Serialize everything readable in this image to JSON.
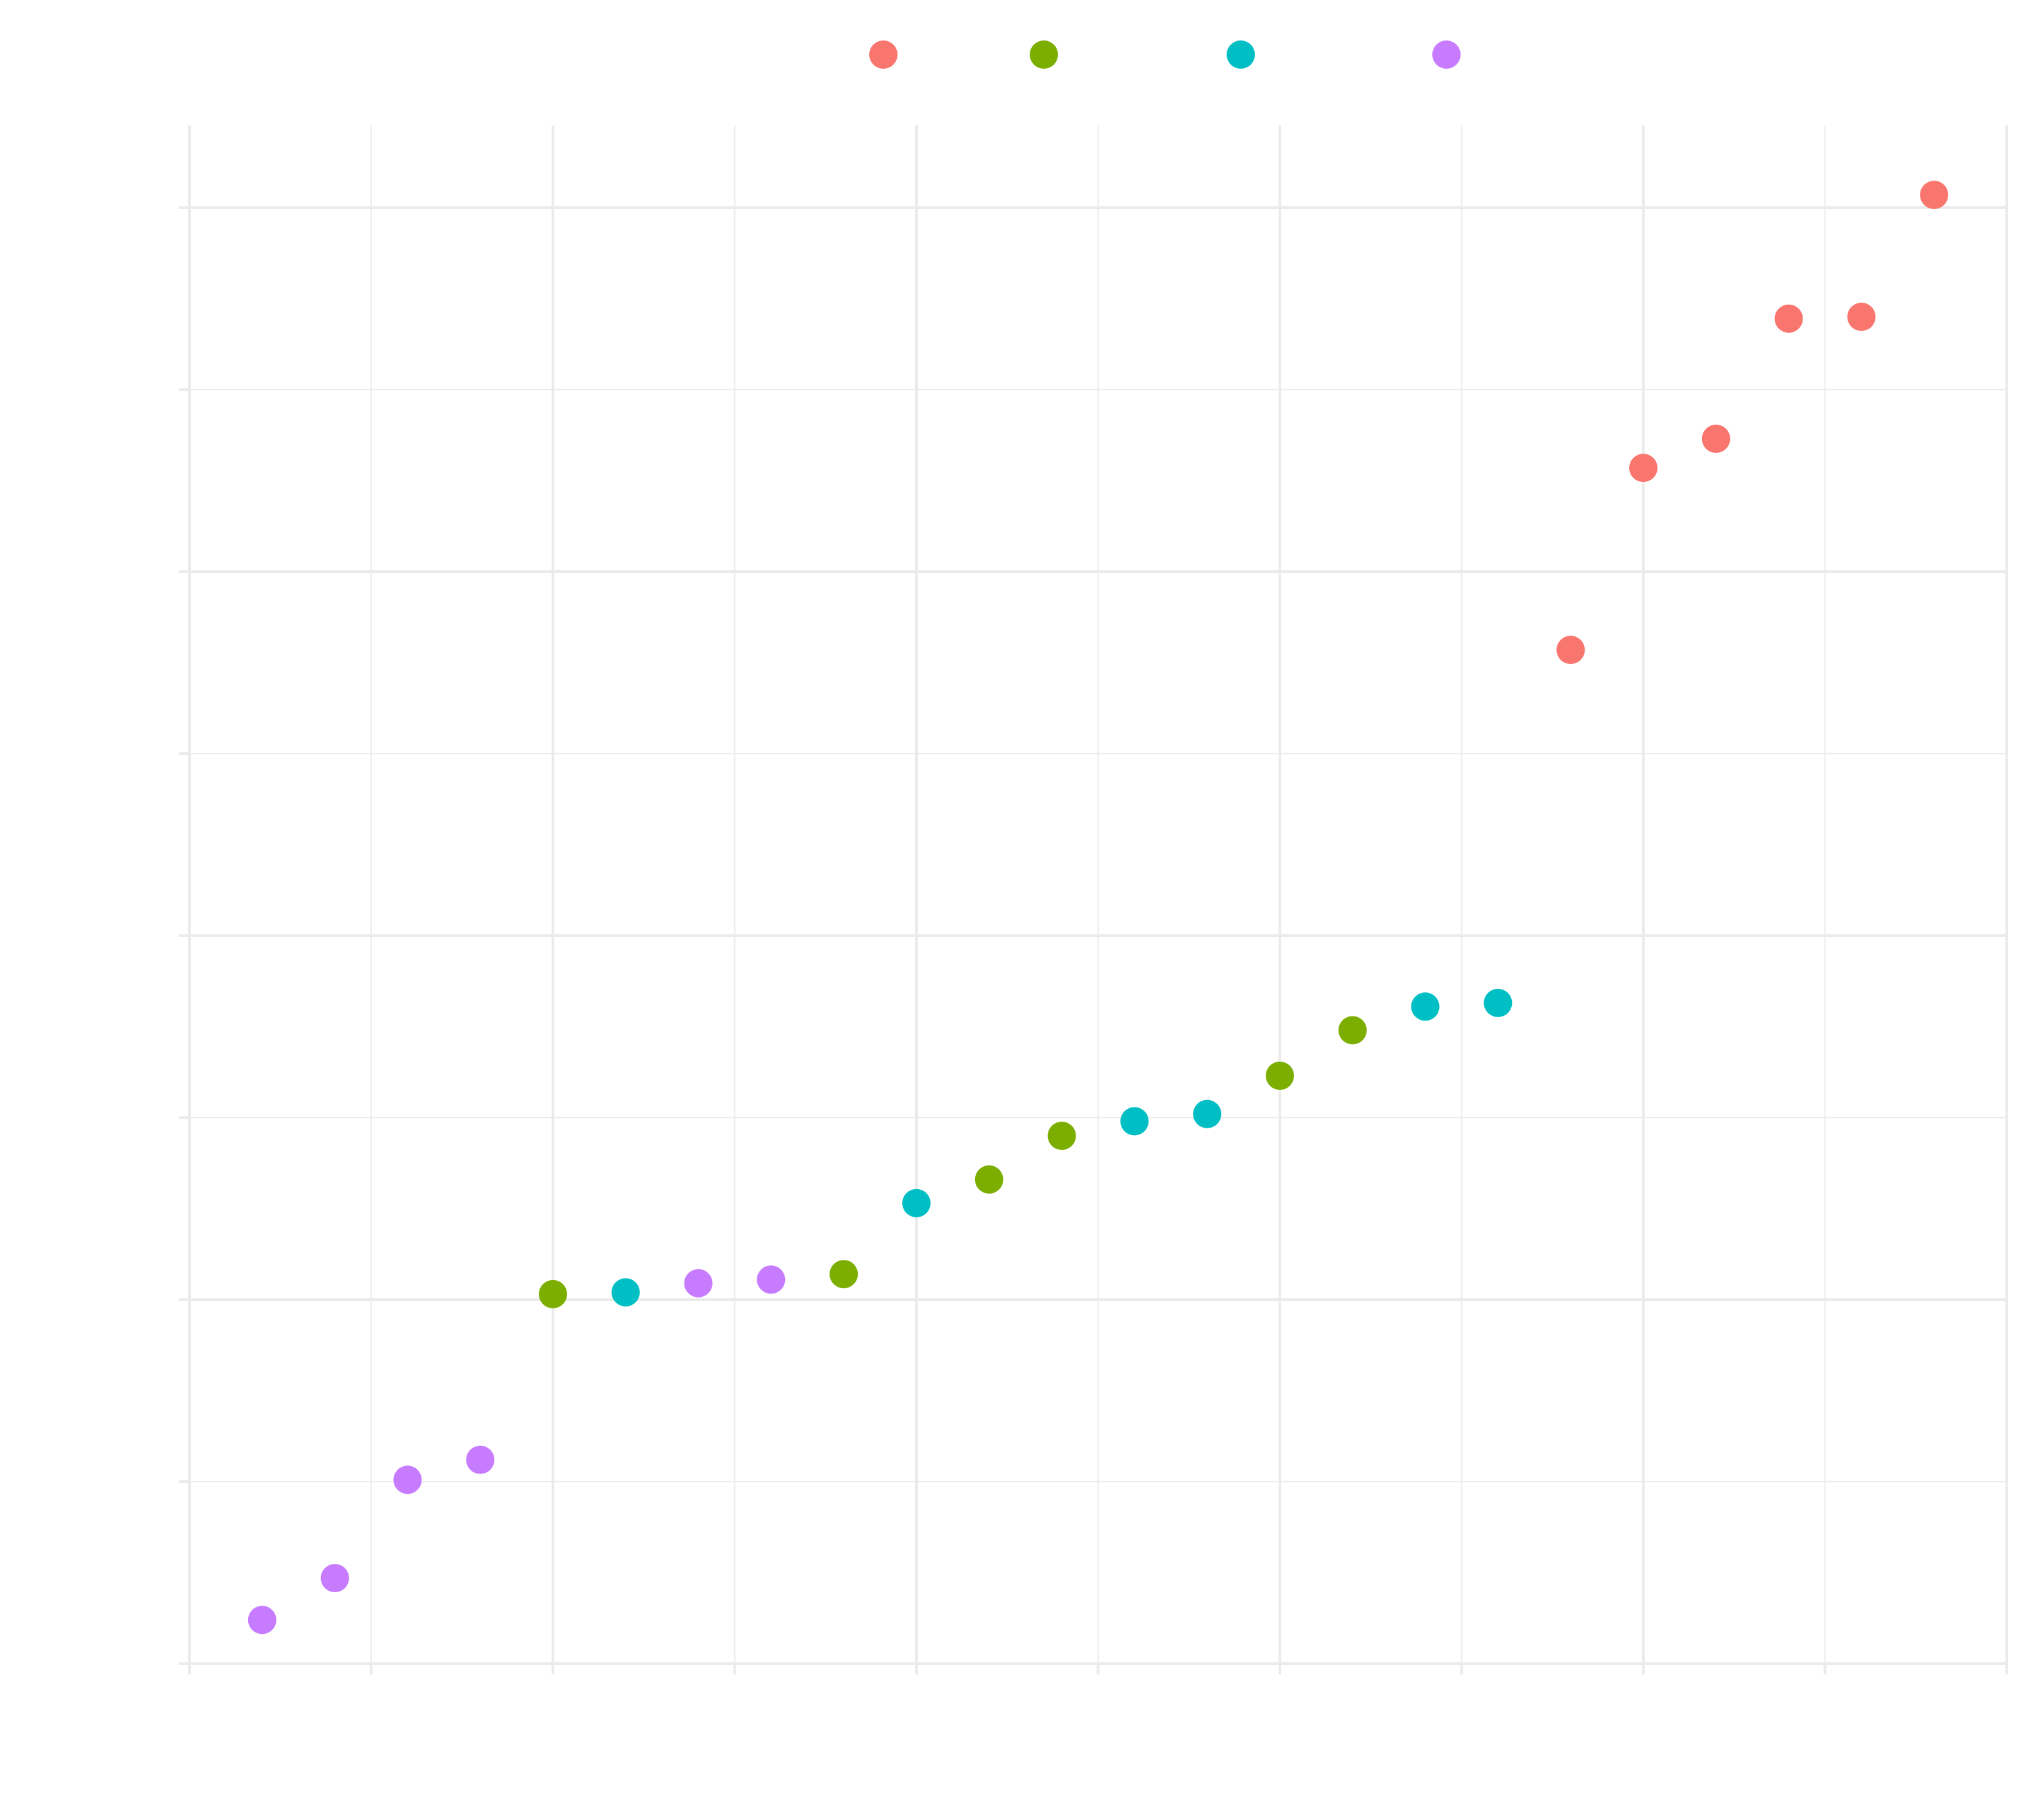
{
  "chart_data": {
    "type": "scatter",
    "title": "",
    "xlabel": "",
    "ylabel": "",
    "grid": true,
    "legend_position": "top",
    "xlim": [
      0,
      25
    ],
    "ylim": [
      0,
      8
    ],
    "x_major_ticks": [
      0,
      5,
      10,
      15,
      20,
      25
    ],
    "x_minor_ticks": [
      2.5,
      7.5,
      12.5,
      17.5,
      22.5
    ],
    "y_major_ticks": [
      0,
      2,
      4,
      6,
      8
    ],
    "y_minor_ticks": [
      1,
      3,
      5,
      7
    ],
    "series": [
      {
        "color": "#F8766D",
        "points": [
          {
            "x": 19,
            "y": 5.57
          },
          {
            "x": 20,
            "y": 6.57
          },
          {
            "x": 21,
            "y": 6.73
          },
          {
            "x": 22,
            "y": 7.39
          },
          {
            "x": 23,
            "y": 7.4
          },
          {
            "x": 24,
            "y": 8.07
          }
        ]
      },
      {
        "color": "#7CAE00",
        "points": [
          {
            "x": 5,
            "y": 2.03
          },
          {
            "x": 9,
            "y": 2.14
          },
          {
            "x": 11,
            "y": 2.66
          },
          {
            "x": 12,
            "y": 2.9
          },
          {
            "x": 15,
            "y": 3.23
          },
          {
            "x": 16,
            "y": 3.48
          }
        ]
      },
      {
        "color": "#00BFC4",
        "points": [
          {
            "x": 6,
            "y": 2.04
          },
          {
            "x": 10,
            "y": 2.53
          },
          {
            "x": 13,
            "y": 2.98
          },
          {
            "x": 14,
            "y": 3.02
          },
          {
            "x": 17,
            "y": 3.61
          },
          {
            "x": 18,
            "y": 3.63
          }
        ]
      },
      {
        "color": "#C77CFF",
        "points": [
          {
            "x": 1,
            "y": 0.24
          },
          {
            "x": 2,
            "y": 0.47
          },
          {
            "x": 3,
            "y": 1.01
          },
          {
            "x": 4,
            "y": 1.12
          },
          {
            "x": 7,
            "y": 2.09
          },
          {
            "x": 8,
            "y": 2.11
          }
        ]
      }
    ]
  }
}
